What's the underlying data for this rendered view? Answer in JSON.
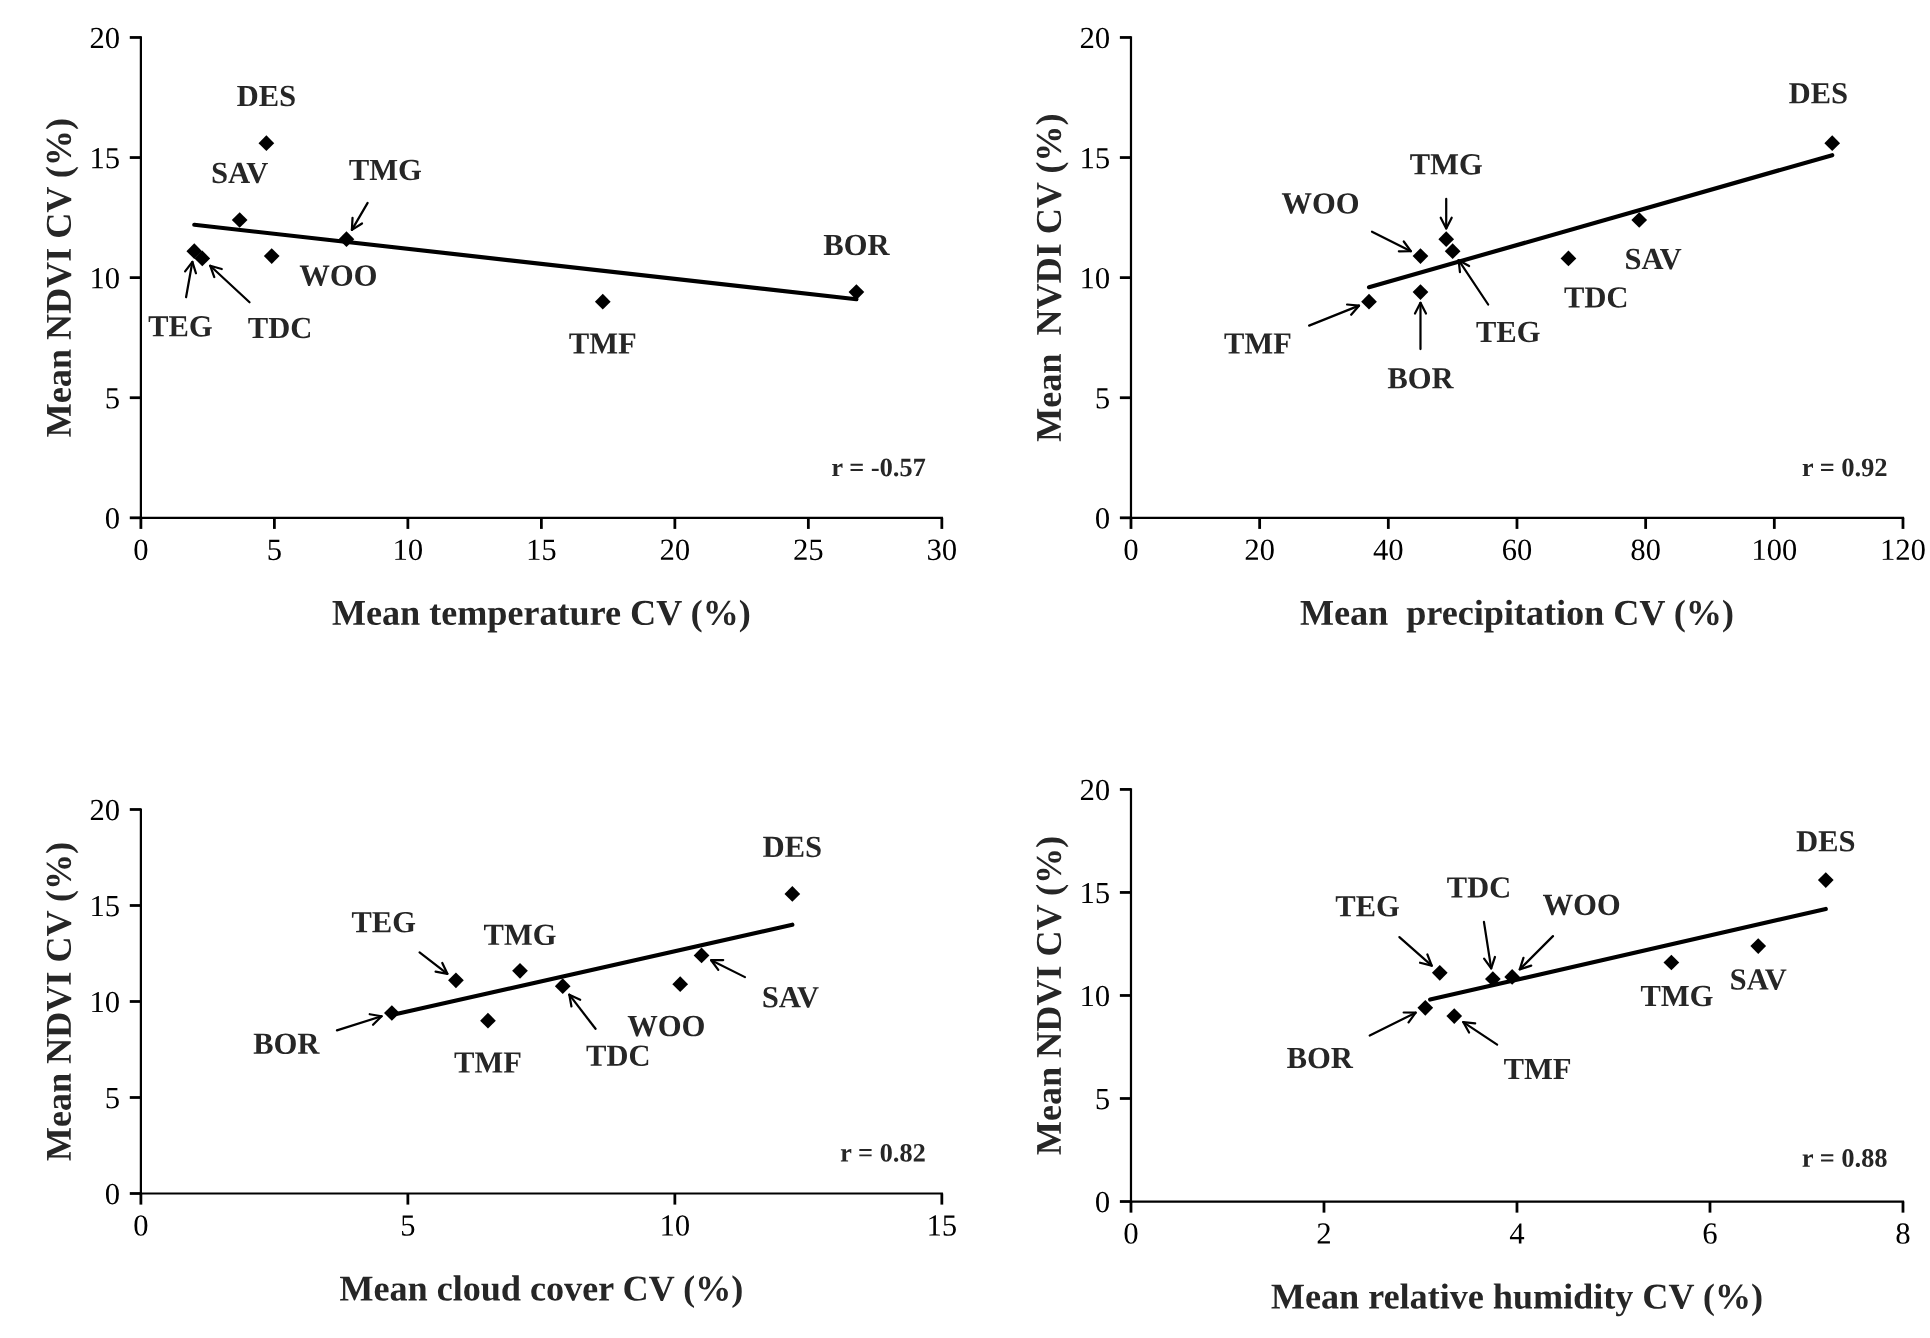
{
  "chart_data": [
    {
      "type": "scatter",
      "xlabel": "Mean temperature CV (%)",
      "ylabel": "Mean NDVI CV (%)",
      "xlim": [
        0,
        30
      ],
      "xticks": [
        0,
        5,
        10,
        15,
        20,
        25,
        30
      ],
      "ylim": [
        0,
        20
      ],
      "yticks": [
        0,
        5,
        10,
        15,
        20
      ],
      "grid": false,
      "series": [
        {
          "type": "scatter",
          "marker": "diamond",
          "color": "#000000",
          "x": [
            4.7,
            3.7,
            7.7,
            2.0,
            4.9,
            2.3,
            26.8,
            17.3
          ],
          "values": [
            15.6,
            12.4,
            11.6,
            11.1,
            10.9,
            10.8,
            9.4,
            9.0
          ]
        },
        {
          "type": "line",
          "color": "#000000",
          "x": [
            2.0,
            26.8
          ],
          "values": [
            12.2,
            9.1
          ]
        }
      ],
      "annotations": [
        {
          "text": "DES",
          "x": 4.7,
          "y": 15.6
        },
        {
          "text": "SAV",
          "x": 3.7,
          "y": 12.4
        },
        {
          "text": "TMG",
          "x": 7.7,
          "y": 11.6
        },
        {
          "text": "TEG",
          "x": 2.0,
          "y": 11.1
        },
        {
          "text": "WOO",
          "x": 4.9,
          "y": 10.9
        },
        {
          "text": "TDC",
          "x": 2.3,
          "y": 10.8
        },
        {
          "text": "BOR",
          "x": 26.8,
          "y": 9.4
        },
        {
          "text": "TMF",
          "x": 17.3,
          "y": 9.0
        },
        "r = -0.57"
      ]
    },
    {
      "type": "scatter",
      "xlabel": "Mean  precipitation CV (%)",
      "ylabel": "Mean  NVDI CV (%)",
      "xlim": [
        0,
        120
      ],
      "xticks": [
        0,
        20,
        40,
        60,
        80,
        100,
        120
      ],
      "ylim": [
        0,
        20
      ],
      "yticks": [
        0,
        5,
        10,
        15,
        20
      ],
      "grid": false,
      "series": [
        {
          "type": "scatter",
          "marker": "diamond",
          "color": "#000000",
          "x": [
            109,
            79,
            49,
            50,
            45,
            68,
            45,
            37
          ],
          "values": [
            15.6,
            12.4,
            11.6,
            11.1,
            10.9,
            10.8,
            9.4,
            9.0
          ]
        },
        {
          "type": "line",
          "color": "#000000",
          "x": [
            37,
            109
          ],
          "values": [
            9.6,
            15.1
          ]
        }
      ],
      "annotations": [
        {
          "text": "DES",
          "x": 109,
          "y": 15.6
        },
        {
          "text": "SAV",
          "x": 79,
          "y": 12.4
        },
        {
          "text": "TMG",
          "x": 49,
          "y": 11.6
        },
        {
          "text": "TEG",
          "x": 50,
          "y": 11.1
        },
        {
          "text": "WOO",
          "x": 45,
          "y": 10.9
        },
        {
          "text": "TDC",
          "x": 68,
          "y": 10.8
        },
        {
          "text": "BOR",
          "x": 45,
          "y": 9.4
        },
        {
          "text": "TMF",
          "x": 37,
          "y": 9.0
        },
        "r = 0.92"
      ]
    },
    {
      "type": "scatter",
      "xlabel": "Mean cloud cover CV (%)",
      "ylabel": "Mean NDVI CV (%)",
      "xlim": [
        0,
        15
      ],
      "xticks": [
        0,
        5,
        10,
        15
      ],
      "ylim": [
        0,
        20
      ],
      "yticks": [
        0,
        5,
        10,
        15,
        20
      ],
      "grid": false,
      "series": [
        {
          "type": "scatter",
          "marker": "diamond",
          "color": "#000000",
          "x": [
            12.2,
            10.5,
            7.1,
            5.9,
            10.1,
            7.9,
            4.7,
            6.5
          ],
          "values": [
            15.6,
            12.4,
            11.6,
            11.1,
            10.9,
            10.8,
            9.4,
            9.0
          ]
        },
        {
          "type": "line",
          "color": "#000000",
          "x": [
            4.7,
            12.2
          ],
          "values": [
            9.3,
            14.0
          ]
        }
      ],
      "annotations": [
        {
          "text": "DES",
          "x": 12.2,
          "y": 15.6
        },
        {
          "text": "SAV",
          "x": 10.5,
          "y": 12.4
        },
        {
          "text": "TMG",
          "x": 7.1,
          "y": 11.6
        },
        {
          "text": "TEG",
          "x": 5.9,
          "y": 11.1
        },
        {
          "text": "WOO",
          "x": 10.1,
          "y": 10.9
        },
        {
          "text": "TDC",
          "x": 7.9,
          "y": 10.8
        },
        {
          "text": "BOR",
          "x": 4.7,
          "y": 9.4
        },
        {
          "text": "TMF",
          "x": 6.5,
          "y": 9.0
        },
        "r = 0.82"
      ]
    },
    {
      "type": "scatter",
      "xlabel": "Mean relative humidity CV (%)",
      "ylabel": "Mean NDVI CV (%)",
      "xlim": [
        0,
        8
      ],
      "xticks": [
        0,
        2,
        4,
        6,
        8
      ],
      "ylim": [
        0,
        20
      ],
      "yticks": [
        0,
        5,
        10,
        15,
        20
      ],
      "grid": false,
      "series": [
        {
          "type": "scatter",
          "marker": "diamond",
          "color": "#000000",
          "x": [
            7.2,
            6.5,
            5.6,
            3.2,
            3.95,
            3.75,
            3.05,
            3.35
          ],
          "values": [
            15.6,
            12.4,
            11.6,
            11.1,
            10.9,
            10.8,
            9.4,
            9.0
          ]
        },
        {
          "type": "line",
          "color": "#000000",
          "x": [
            3.1,
            7.2
          ],
          "values": [
            9.8,
            14.2
          ]
        }
      ],
      "annotations": [
        {
          "text": "DES",
          "x": 7.2,
          "y": 15.6
        },
        {
          "text": "SAV",
          "x": 6.5,
          "y": 12.4
        },
        {
          "text": "TMG",
          "x": 5.6,
          "y": 11.6
        },
        {
          "text": "TEG",
          "x": 3.2,
          "y": 11.1
        },
        {
          "text": "WOO",
          "x": 3.95,
          "y": 10.9
        },
        {
          "text": "TDC",
          "x": 3.75,
          "y": 10.8
        },
        {
          "text": "BOR",
          "x": 3.05,
          "y": 9.4
        },
        {
          "text": "TMF",
          "x": 3.35,
          "y": 9.0
        },
        "r = 0.88"
      ]
    }
  ]
}
